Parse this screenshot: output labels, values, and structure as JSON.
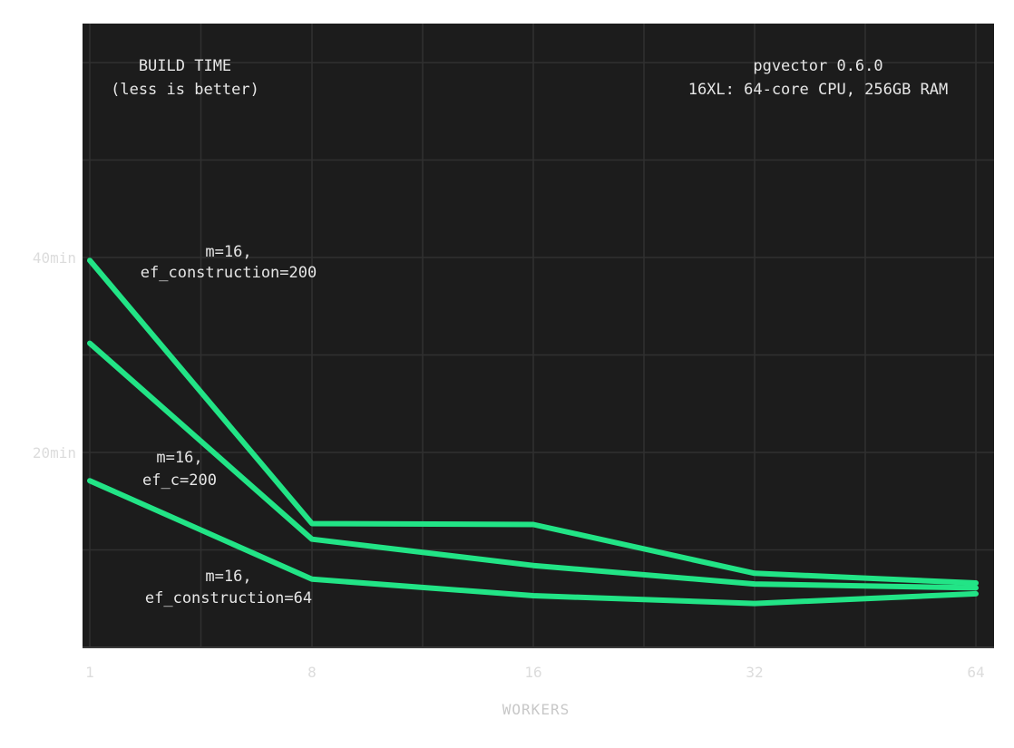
{
  "chart_data": {
    "type": "line",
    "title": "BUILD TIME",
    "subtitle": "(less is better)",
    "info_line1": "pgvector 0.6.0",
    "info_line2": "16XL: 64-core CPU, 256GB RAM",
    "xlabel": "WORKERS",
    "ylabel": "",
    "categories": [
      "1",
      "8",
      "16",
      "32",
      "64"
    ],
    "y_ticks": [
      {
        "value": 20,
        "label": "20min"
      },
      {
        "value": 40,
        "label": "40min"
      }
    ],
    "ylim": [
      0,
      64
    ],
    "grid": true,
    "line_color": "#22e486",
    "background": "#1c1c1c",
    "series": [
      {
        "label_line1": "m=16,",
        "label_line2": "ef_construction=200",
        "values": [
          39.7,
          12.7,
          12.6,
          7.6,
          6.6
        ]
      },
      {
        "label_line1": "m=16,",
        "label_line2": "ef_c=200",
        "values": [
          31.2,
          11.1,
          8.4,
          6.5,
          6.1
        ]
      },
      {
        "label_line1": "m=16,",
        "label_line2": "ef_construction=64",
        "values": [
          17.1,
          7.0,
          5.3,
          4.5,
          5.5
        ]
      }
    ]
  }
}
